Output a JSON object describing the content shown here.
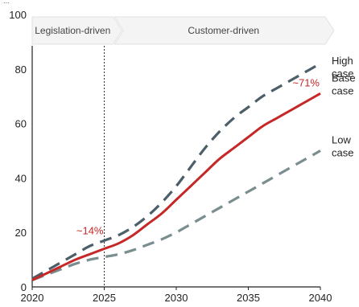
{
  "chart_data": {
    "type": "line",
    "title": "...",
    "xlabel": "",
    "ylabel": "",
    "xlim": [
      2020,
      2040
    ],
    "ylim": [
      0,
      100
    ],
    "x_ticks": [
      2020,
      2025,
      2030,
      2035,
      2040
    ],
    "y_ticks": [
      0,
      20,
      40,
      60,
      80,
      100
    ],
    "phases": [
      {
        "label": "Legislation-driven",
        "start": 2020,
        "end": 2025
      },
      {
        "label": "Customer-driven",
        "start": 2025,
        "end": 2040
      }
    ],
    "divider_x": 2025,
    "series": [
      {
        "name": "High case",
        "label_lines": [
          "High",
          "case"
        ],
        "color": "#4c5f68",
        "style": "dashed",
        "points": [
          [
            2020,
            3
          ],
          [
            2021,
            6
          ],
          [
            2022,
            9
          ],
          [
            2023,
            12
          ],
          [
            2024,
            15
          ],
          [
            2025,
            17
          ],
          [
            2026,
            19
          ],
          [
            2027,
            22
          ],
          [
            2028,
            26
          ],
          [
            2029,
            31
          ],
          [
            2030,
            37
          ],
          [
            2031,
            44
          ],
          [
            2032,
            51
          ],
          [
            2033,
            57
          ],
          [
            2034,
            62
          ],
          [
            2035,
            66
          ],
          [
            2036,
            70
          ],
          [
            2037,
            73
          ],
          [
            2038,
            76
          ],
          [
            2039,
            79
          ],
          [
            2040,
            82
          ]
        ]
      },
      {
        "name": "Base case",
        "label_lines": [
          "Base",
          "case"
        ],
        "color": "#c62828",
        "style": "solid",
        "points": [
          [
            2020,
            2.5
          ],
          [
            2021,
            5
          ],
          [
            2022,
            7.5
          ],
          [
            2023,
            10
          ],
          [
            2024,
            12
          ],
          [
            2025,
            14
          ],
          [
            2026,
            16
          ],
          [
            2027,
            19
          ],
          [
            2028,
            23
          ],
          [
            2029,
            27
          ],
          [
            2030,
            32
          ],
          [
            2031,
            37
          ],
          [
            2032,
            42
          ],
          [
            2033,
            47
          ],
          [
            2034,
            51
          ],
          [
            2035,
            55
          ],
          [
            2036,
            59
          ],
          [
            2037,
            62
          ],
          [
            2038,
            65
          ],
          [
            2039,
            68
          ],
          [
            2040,
            71
          ]
        ]
      },
      {
        "name": "Low case",
        "label_lines": [
          "Low",
          "case"
        ],
        "color": "#7a8d8f",
        "style": "dashed",
        "points": [
          [
            2020,
            2.5
          ],
          [
            2021,
            4.5
          ],
          [
            2022,
            6.5
          ],
          [
            2023,
            8.5
          ],
          [
            2024,
            10
          ],
          [
            2025,
            11
          ],
          [
            2026,
            12
          ],
          [
            2027,
            13.5
          ],
          [
            2028,
            15.5
          ],
          [
            2029,
            17.5
          ],
          [
            2030,
            20
          ],
          [
            2031,
            23
          ],
          [
            2032,
            26
          ],
          [
            2033,
            29
          ],
          [
            2034,
            32
          ],
          [
            2035,
            35
          ],
          [
            2036,
            38
          ],
          [
            2037,
            41
          ],
          [
            2038,
            44
          ],
          [
            2039,
            47
          ],
          [
            2040,
            50
          ]
        ]
      }
    ],
    "annotations": [
      {
        "text": "~14%",
        "series": "Base case",
        "x": 2025,
        "y": 14
      },
      {
        "text": "~71%",
        "series": "Base case",
        "x": 2040,
        "y": 71
      }
    ]
  }
}
